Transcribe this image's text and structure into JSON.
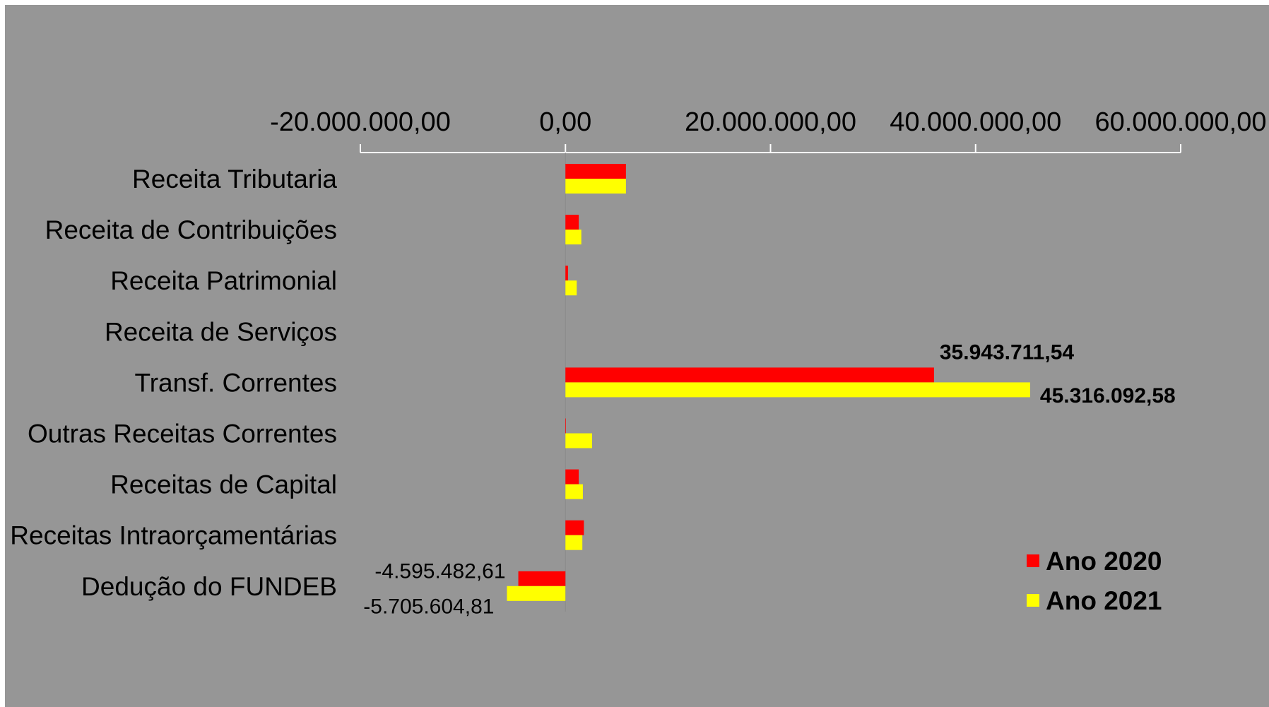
{
  "chart_data": {
    "type": "bar",
    "orientation": "horizontal",
    "categories": [
      "Receita Tributaria",
      "Receita de Contribuições",
      "Receita Patrimonial",
      "Receita de Serviços",
      "Transf. Correntes",
      "Outras Receitas Correntes",
      "Receitas de Capital",
      "Receitas Intraorçamentárias",
      "Dedução do FUNDEB"
    ],
    "series": [
      {
        "name": "Ano 2020",
        "color": "#FF0000",
        "values": [
          5900000,
          1300000,
          250000,
          0,
          35943711.54,
          50000,
          1300000,
          1800000,
          -4595482.61
        ]
      },
      {
        "name": "Ano 2021",
        "color": "#FFFF00",
        "values": [
          5900000,
          1550000,
          1100000,
          0,
          45316092.58,
          2600000,
          1700000,
          1650000,
          -5705604.81
        ]
      }
    ],
    "xlim": [
      -20000000,
      60000000
    ],
    "xticks": [
      -20000000,
      0,
      20000000,
      40000000,
      60000000
    ],
    "xtick_labels": [
      "-20.000.000,00",
      "0,00",
      "20.000.000,00",
      "40.000.000,00",
      "60.000.000,00"
    ],
    "axis_position": "top",
    "data_labels": [
      {
        "category": "Transf. Correntes",
        "series": "Ano 2020",
        "text": "35.943.711,54",
        "bold": true
      },
      {
        "category": "Transf. Correntes",
        "series": "Ano 2021",
        "text": "45.316.092,58",
        "bold": true
      },
      {
        "category": "Dedução do FUNDEB",
        "series": "Ano 2020",
        "text": "-4.595.482,61",
        "bold": false
      },
      {
        "category": "Dedução do FUNDEB",
        "series": "Ano 2021",
        "text": "-5.705.604,81",
        "bold": false
      }
    ],
    "legend": {
      "placement": "bottom-right"
    },
    "grid": false,
    "background_color": "#969696",
    "title": "",
    "xlabel": "",
    "ylabel": ""
  }
}
